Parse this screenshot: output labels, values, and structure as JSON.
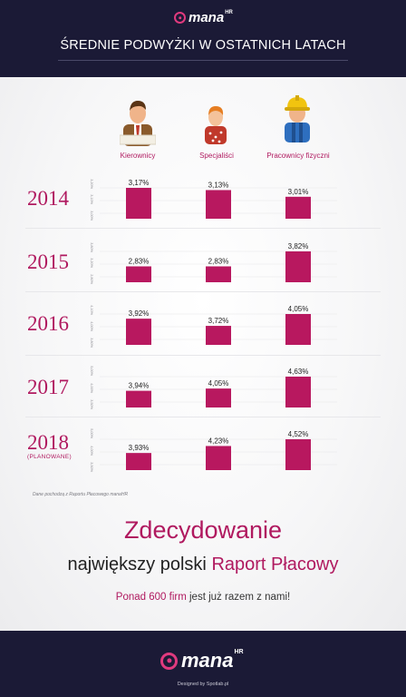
{
  "header": {
    "logo_text": "mana",
    "logo_suffix": "HR",
    "title": "ŚREDNIE PODWYŻKI W OSTATNICH LATACH"
  },
  "chart_data": {
    "type": "bar",
    "categories": [
      "Kierownicy",
      "Specjaliści",
      "Pracownicy fizyczni"
    ],
    "unit": "%",
    "panels": [
      {
        "year": "2014",
        "note": "",
        "values": [
          3.17,
          3.13,
          3.01
        ],
        "labels": [
          "3,17%",
          "3,13%",
          "3,01%"
        ],
        "ticks": [
          "3,20%",
          "3,10%",
          "3,00%"
        ]
      },
      {
        "year": "2015",
        "note": "",
        "values": [
          2.83,
          2.83,
          3.82
        ],
        "labels": [
          "2,83%",
          "2,83%",
          "3,82%"
        ],
        "ticks": [
          "3,80%",
          "3,20%",
          "2,80%"
        ]
      },
      {
        "year": "2016",
        "note": "",
        "values": [
          3.92,
          3.72,
          4.05
        ],
        "labels": [
          "3,92%",
          "3,72%",
          "4,05%"
        ],
        "ticks": [
          "4,10%",
          "4,00%",
          "3,80%"
        ]
      },
      {
        "year": "2017",
        "note": "",
        "values": [
          3.94,
          4.05,
          4.63
        ],
        "labels": [
          "3,94%",
          "4,05%",
          "4,63%"
        ],
        "ticks": [
          "5,00%",
          "4,00%",
          "3,50%"
        ]
      },
      {
        "year": "2018",
        "note": "(PLANOWANE)",
        "values": [
          3.93,
          4.23,
          4.52
        ],
        "labels": [
          "3,93%",
          "4,23%",
          "4,52%"
        ],
        "ticks": [
          "5,00%",
          "4,00%",
          "3,50%"
        ]
      }
    ]
  },
  "colors": {
    "bar": "#b8185f",
    "accent": "#b0195f",
    "background_dark": "#1b1a36"
  },
  "source_note": "Dane pochodzą z Raportu Płacowego manaHR",
  "promo": {
    "line1": "Zdecydowanie",
    "line2_plain": "największy polski",
    "line2_accent": "Raport Płacowy",
    "line3_accent": "Ponad 600 firm",
    "line3_plain": "jest już razem z nami!"
  },
  "footer": {
    "logo_text": "mana",
    "logo_suffix": "HR",
    "credit": "Designed by Spotlab.pl"
  },
  "icons": [
    "manager-icon",
    "specialist-icon",
    "worker-icon",
    "mana-logo-icon"
  ]
}
